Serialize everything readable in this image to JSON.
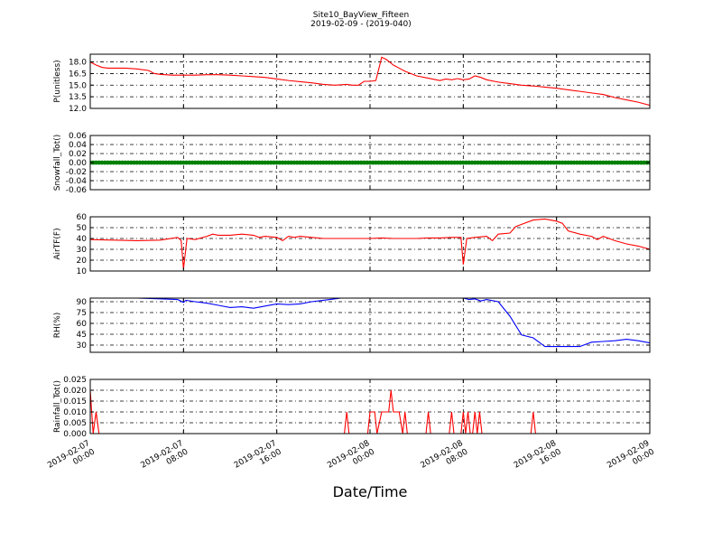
{
  "chart_data": {
    "title": "Site10_BayView_Fifteen",
    "subtitle": "2019-02-09 - (2019-040)",
    "xlabel": "Date/Time",
    "x_ticks": [
      {
        "l1": "2019-02-07",
        "l2": "00:00",
        "hour": 0
      },
      {
        "l1": "2019-02-07",
        "l2": "08:00",
        "hour": 8
      },
      {
        "l1": "2019-02-07",
        "l2": "16:00",
        "hour": 16
      },
      {
        "l1": "2019-02-08",
        "l2": "00:00",
        "hour": 24
      },
      {
        "l1": "2019-02-08",
        "l2": "08:00",
        "hour": 32
      },
      {
        "l1": "2019-02-08",
        "l2": "16:00",
        "hour": 40
      },
      {
        "l1": "2019-02-09",
        "l2": "00:00",
        "hour": 48
      }
    ],
    "xlim_hours": [
      0,
      48
    ],
    "grid": true,
    "panels": [
      {
        "type": "line",
        "ylabel": "P(unitless)",
        "color": "#ff0000",
        "ylim": [
          12.0,
          19.0
        ],
        "yticks": [
          12.0,
          13.5,
          15.0,
          16.5,
          18.0
        ],
        "ytick_labels": [
          "12.0",
          "13.5",
          "15.0",
          "16.5",
          "18.0"
        ],
        "x": [
          0,
          0.5,
          1,
          1.5,
          2,
          3,
          4,
          5,
          5.5,
          6,
          7,
          8,
          9,
          10,
          11,
          12,
          13,
          14,
          15,
          16,
          17,
          18,
          19,
          20,
          21,
          22,
          22.5,
          23,
          23.5,
          24,
          24.5,
          25,
          25.3,
          25.5,
          26,
          26.5,
          27,
          28,
          29,
          30,
          30.5,
          31,
          31.5,
          32,
          32.5,
          33,
          33.5,
          34,
          35,
          36,
          37,
          38,
          39,
          40,
          41,
          42,
          43,
          44,
          45,
          46,
          47,
          48
        ],
        "values": [
          18.0,
          17.6,
          17.3,
          17.2,
          17.2,
          17.2,
          17.1,
          16.9,
          16.5,
          16.4,
          16.3,
          16.3,
          16.3,
          16.35,
          16.35,
          16.3,
          16.2,
          16.1,
          16.0,
          15.8,
          15.6,
          15.45,
          15.3,
          15.1,
          15.0,
          15.1,
          15.0,
          15.0,
          15.5,
          15.5,
          15.6,
          18.6,
          18.4,
          18.2,
          17.6,
          17.2,
          16.8,
          16.2,
          15.9,
          15.6,
          15.8,
          15.7,
          15.85,
          15.7,
          15.8,
          16.2,
          16.0,
          15.7,
          15.4,
          15.2,
          15.0,
          14.9,
          14.75,
          14.6,
          14.4,
          14.2,
          14.0,
          13.8,
          13.4,
          13.1,
          12.8,
          12.4
        ]
      },
      {
        "type": "scatter",
        "ylabel": "Snowfall_Tot()",
        "color": "#008000",
        "ylim": [
          -0.06,
          0.06
        ],
        "yticks": [
          -0.06,
          -0.04,
          -0.02,
          0.0,
          0.02,
          0.04,
          0.06
        ],
        "ytick_labels": [
          "-0.06",
          "-0.04",
          "-0.02",
          "0.00",
          "0.02",
          "0.04",
          "0.06"
        ],
        "constant_value": 0.0,
        "interval_hours": 0.25
      },
      {
        "type": "line",
        "ylabel": "AirTF(F)",
        "color": "#ff0000",
        "ylim": [
          10,
          60
        ],
        "yticks": [
          10,
          20,
          30,
          40,
          50,
          60
        ],
        "ytick_labels": [
          "10",
          "20",
          "30",
          "40",
          "50",
          "60"
        ],
        "x": [
          0,
          2,
          4,
          6,
          7.5,
          7.8,
          8.0,
          8.3,
          9,
          10,
          10.5,
          11,
          12,
          13,
          14,
          14.5,
          15,
          16,
          16.5,
          17,
          17.5,
          18,
          19,
          20,
          21,
          22,
          23,
          24,
          25,
          26,
          27,
          28,
          29,
          30,
          31,
          31.8,
          32.0,
          32.3,
          33,
          34,
          34.5,
          35,
          36,
          36.5,
          37,
          38,
          39,
          40,
          40.5,
          41,
          42,
          43,
          43.5,
          44,
          45,
          46,
          47,
          48
        ],
        "values": [
          39,
          38.5,
          38,
          38.5,
          41,
          38,
          12,
          40,
          39,
          42,
          44,
          43,
          43,
          44,
          43,
          41,
          42,
          41,
          38,
          42,
          41,
          42,
          41,
          40,
          40,
          40,
          40,
          40,
          40.5,
          40,
          40,
          40,
          40.5,
          40.5,
          41,
          41,
          16,
          40,
          41,
          42,
          38,
          44,
          45,
          51,
          53,
          57,
          58,
          56,
          54,
          47,
          44,
          42,
          39,
          42,
          38,
          35,
          33,
          30
        ]
      },
      {
        "type": "line",
        "ylabel": "RH(%)",
        "color": "#0000ff",
        "ylim": [
          20,
          95
        ],
        "yticks": [
          30,
          45,
          60,
          75,
          90
        ],
        "ytick_labels": [
          "30",
          "45",
          "60",
          "75",
          "90"
        ],
        "x": [
          0,
          2,
          4,
          6,
          7.5,
          8.0,
          8.2,
          9,
          10,
          11,
          12,
          13,
          14,
          15,
          16,
          17,
          18,
          19,
          20,
          21,
          21.5,
          32,
          32.5,
          33,
          33.5,
          34,
          35,
          36,
          37,
          38,
          39,
          40,
          41,
          42,
          43,
          44,
          45,
          46,
          47,
          48
        ],
        "values": [
          95,
          95,
          95,
          94,
          93,
          89,
          92,
          90,
          88,
          85,
          82,
          83,
          81,
          84,
          87,
          86,
          87,
          90,
          92,
          94,
          95,
          95,
          93,
          94,
          91,
          93,
          90,
          70,
          44,
          40,
          28,
          28,
          28,
          28,
          34,
          35,
          36,
          38,
          36,
          33
        ]
      },
      {
        "type": "line",
        "ylabel": "Rainfall_Tot()",
        "color": "#ff0000",
        "ylim": [
          0.0,
          0.025
        ],
        "yticks": [
          0.0,
          0.005,
          0.01,
          0.015,
          0.02,
          0.025
        ],
        "ytick_labels": [
          "0.000",
          "0.005",
          "0.010",
          "0.015",
          "0.020",
          "0.025"
        ],
        "x": [
          0,
          0.25,
          0.5,
          0.75,
          1.0,
          1.25,
          1.5,
          21.8,
          22.0,
          22.2,
          23.8,
          24.0,
          24.2,
          24.4,
          24.6,
          25.0,
          25.2,
          25.4,
          25.6,
          25.8,
          26.0,
          26.3,
          26.5,
          26.8,
          27.0,
          27.2,
          28.8,
          29.0,
          29.2,
          30.8,
          31.0,
          31.2,
          31.8,
          32.0,
          32.2,
          32.4,
          32.6,
          32.8,
          33.0,
          33.2,
          33.4,
          33.6,
          33.8,
          37.8,
          38.0,
          38.2,
          48
        ],
        "values": [
          0.02,
          0.0,
          0.01,
          0.0,
          0.0,
          0.0,
          0.0,
          0.0,
          0.01,
          0.0,
          0.0,
          0.01,
          0.01,
          0.01,
          0.0,
          0.01,
          0.01,
          0.01,
          0.01,
          0.02,
          0.01,
          0.01,
          0.01,
          0.0,
          0.01,
          0.0,
          0.0,
          0.01,
          0.0,
          0.0,
          0.01,
          0.0,
          0.0,
          0.01,
          0.0,
          0.01,
          0.0,
          0.0,
          0.01,
          0.0,
          0.01,
          0.0,
          0.0,
          0.0,
          0.01,
          0.0,
          0.0
        ]
      }
    ]
  }
}
